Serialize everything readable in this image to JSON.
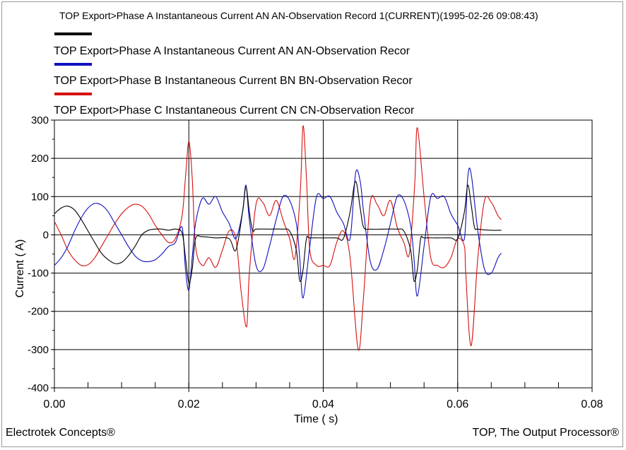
{
  "header": {
    "title": "TOP Export>Phase A Instantaneous Current AN AN-Observation Record 1(CURRENT)(1995-02-26 09:08:43)"
  },
  "footer": {
    "left": "Electrotek Concepts®",
    "right": "TOP, The Output Processor®"
  },
  "colors": {
    "black": "#000000",
    "blue": "#1010c0",
    "red": "#d81010",
    "grid": "#000000"
  },
  "chart_data": {
    "type": "line",
    "title": "TOP Export>Phase A Instantaneous Current AN AN-Observation Record 1(CURRENT)(1995-02-26 09:08:43)",
    "xlabel": "Time ( s)",
    "ylabel": "Current ( A)",
    "xlim": [
      0,
      0.08
    ],
    "ylim": [
      -400,
      300
    ],
    "xticks": [
      "0.00",
      "0.02",
      "0.04",
      "0.06",
      "0.08"
    ],
    "yticks": [
      "300",
      "200",
      "100",
      "0",
      "-100",
      "-200",
      "-300",
      "-400"
    ],
    "xtick_values": [
      0,
      0.02,
      0.04,
      0.06,
      0.08
    ],
    "ytick_values": [
      300,
      200,
      100,
      0,
      -100,
      -200,
      -300,
      -400
    ],
    "grid": true,
    "legend_position": "top",
    "series": [
      {
        "name": "TOP Export>Phase A Instantaneous Current AN AN-Observation Recor",
        "color": "#000000",
        "legend_color": "#000000",
        "x": [
          0,
          0.001,
          0.002,
          0.003,
          0.004,
          0.005,
          0.006,
          0.007,
          0.008,
          0.009,
          0.01,
          0.011,
          0.012,
          0.013,
          0.014,
          0.015,
          0.016,
          0.017,
          0.018,
          0.019,
          0.0195,
          0.02,
          0.0205,
          0.021,
          0.022,
          0.024,
          0.026,
          0.027,
          0.028,
          0.0285,
          0.029,
          0.0295,
          0.03,
          0.032,
          0.034,
          0.035,
          0.036,
          0.0365,
          0.037,
          0.0375,
          0.038,
          0.04,
          0.042,
          0.043,
          0.044,
          0.0448,
          0.0455,
          0.046,
          0.047,
          0.049,
          0.051,
          0.052,
          0.053,
          0.0535,
          0.054,
          0.0545,
          0.055,
          0.057,
          0.059,
          0.06,
          0.061,
          0.0615,
          0.062,
          0.0625,
          0.063,
          0.065,
          0.0665
        ],
        "y": [
          55,
          70,
          75,
          65,
          40,
          10,
          -20,
          -48,
          -65,
          -75,
          -72,
          -55,
          -30,
          0,
          12,
          15,
          15,
          12,
          15,
          5,
          -60,
          -125,
          -90,
          -10,
          -5,
          -8,
          -10,
          -40,
          60,
          125,
          60,
          10,
          15,
          15,
          15,
          10,
          -40,
          -120,
          -90,
          -10,
          -8,
          -8,
          -8,
          -10,
          60,
          140,
          70,
          20,
          15,
          15,
          15,
          10,
          -40,
          -120,
          -90,
          -10,
          -8,
          -8,
          -8,
          -10,
          60,
          130,
          80,
          20,
          15,
          12,
          12
        ]
      },
      {
        "name": "TOP Export>Phase B Instantaneous Current BN BN-Observation Recor",
        "color": "#1010c0",
        "legend_color": "#1010c0",
        "x": [
          0,
          0.001,
          0.002,
          0.003,
          0.004,
          0.005,
          0.006,
          0.007,
          0.008,
          0.009,
          0.01,
          0.011,
          0.012,
          0.013,
          0.014,
          0.015,
          0.016,
          0.017,
          0.018,
          0.019,
          0.0195,
          0.02,
          0.0205,
          0.021,
          0.022,
          0.023,
          0.024,
          0.025,
          0.026,
          0.027,
          0.028,
          0.0285,
          0.029,
          0.03,
          0.031,
          0.032,
          0.033,
          0.034,
          0.035,
          0.036,
          0.0365,
          0.037,
          0.038,
          0.039,
          0.04,
          0.041,
          0.042,
          0.043,
          0.044,
          0.0448,
          0.0455,
          0.046,
          0.047,
          0.048,
          0.049,
          0.05,
          0.051,
          0.052,
          0.053,
          0.0535,
          0.054,
          0.055,
          0.056,
          0.057,
          0.058,
          0.059,
          0.06,
          0.061,
          0.0615,
          0.062,
          0.063,
          0.064,
          0.065,
          0.066,
          0.0665
        ],
        "y": [
          -80,
          -60,
          -30,
          10,
          45,
          70,
          82,
          78,
          60,
          30,
          0,
          -30,
          -55,
          -68,
          -70,
          -65,
          -50,
          -30,
          -20,
          20,
          -90,
          -145,
          -60,
          30,
          95,
          80,
          100,
          60,
          30,
          -10,
          60,
          130,
          40,
          -80,
          -90,
          -30,
          40,
          100,
          90,
          30,
          -60,
          -165,
          -30,
          100,
          95,
          100,
          60,
          30,
          -10,
          160,
          140,
          60,
          -70,
          -90,
          -40,
          30,
          100,
          90,
          25,
          -60,
          -160,
          -30,
          100,
          95,
          100,
          55,
          25,
          -10,
          150,
          160,
          10,
          -90,
          -100,
          -60,
          -48
        ]
      },
      {
        "name": "TOP Export>Phase C Instantaneous Current CN CN-Observation Recor",
        "color": "#d81010",
        "legend_color": "#d81010",
        "x": [
          0,
          0.001,
          0.002,
          0.003,
          0.004,
          0.005,
          0.006,
          0.007,
          0.008,
          0.009,
          0.01,
          0.011,
          0.012,
          0.013,
          0.014,
          0.015,
          0.016,
          0.017,
          0.018,
          0.019,
          0.0195,
          0.02,
          0.0205,
          0.021,
          0.022,
          0.023,
          0.024,
          0.025,
          0.026,
          0.027,
          0.0278,
          0.0286,
          0.029,
          0.03,
          0.031,
          0.032,
          0.033,
          0.034,
          0.035,
          0.0358,
          0.0366,
          0.037,
          0.0375,
          0.038,
          0.039,
          0.04,
          0.041,
          0.042,
          0.043,
          0.044,
          0.0452,
          0.046,
          0.047,
          0.048,
          0.049,
          0.05,
          0.051,
          0.052,
          0.0528,
          0.0536,
          0.054,
          0.055,
          0.056,
          0.057,
          0.058,
          0.059,
          0.06,
          0.061,
          0.0612,
          0.062,
          0.063,
          0.064,
          0.065,
          0.066,
          0.0665
        ],
        "y": [
          35,
          0,
          -40,
          -65,
          -80,
          -78,
          -60,
          -30,
          0,
          30,
          55,
          72,
          80,
          75,
          55,
          25,
          0,
          -20,
          -10,
          50,
          150,
          245,
          150,
          -30,
          -80,
          -60,
          -85,
          -40,
          10,
          -10,
          -150,
          -240,
          -100,
          80,
          85,
          50,
          90,
          40,
          -10,
          -60,
          120,
          285,
          150,
          -40,
          -80,
          -80,
          -80,
          -20,
          10,
          -60,
          -300,
          -160,
          85,
          80,
          50,
          90,
          20,
          -20,
          -50,
          130,
          280,
          100,
          -60,
          -80,
          -85,
          -60,
          -10,
          -30,
          -100,
          -290,
          -60,
          90,
          85,
          50,
          40
        ]
      }
    ]
  }
}
